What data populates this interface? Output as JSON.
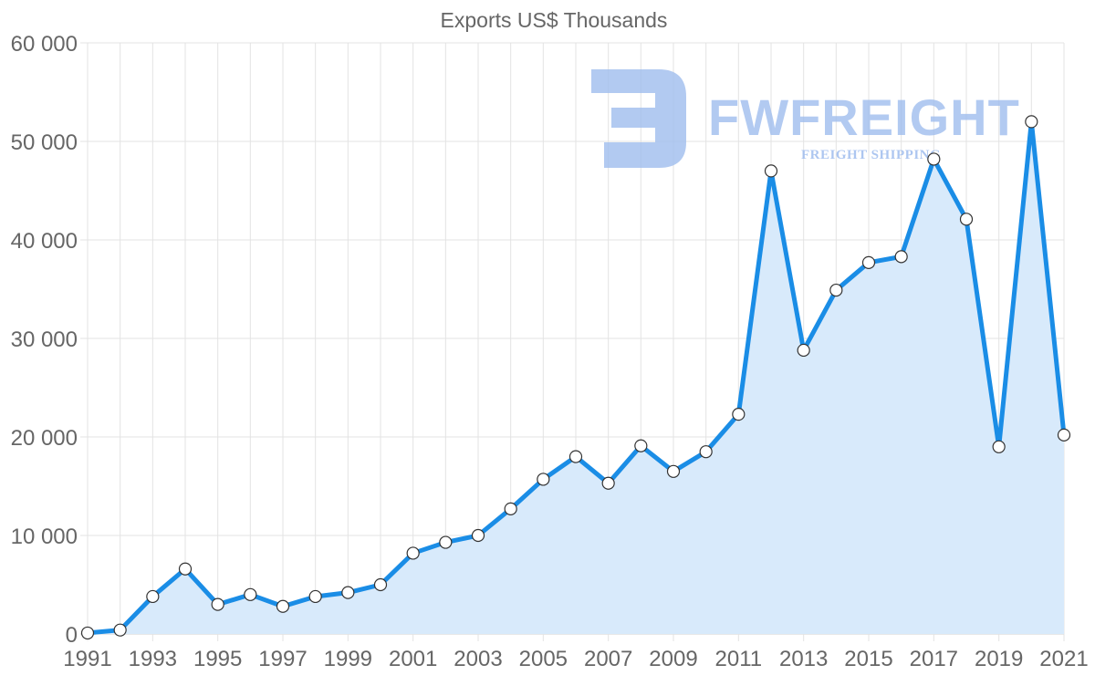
{
  "chart_data": {
    "type": "area",
    "title": "Exports US$ Thousands",
    "xlabel": "",
    "ylabel": "",
    "x": [
      1991,
      1992,
      1993,
      1994,
      1995,
      1996,
      1997,
      1998,
      1999,
      2000,
      2001,
      2002,
      2003,
      2004,
      2005,
      2006,
      2007,
      2008,
      2009,
      2010,
      2011,
      2012,
      2013,
      2014,
      2015,
      2016,
      2017,
      2018,
      2019,
      2020,
      2021
    ],
    "series": [
      {
        "name": "Exports",
        "values": [
          100,
          400,
          3800,
          6600,
          3000,
          4000,
          2800,
          3800,
          4200,
          5000,
          8200,
          9300,
          10000,
          12700,
          15700,
          18000,
          15300,
          19100,
          16500,
          18500,
          22300,
          47000,
          28800,
          34900,
          37700,
          38300,
          48200,
          42100,
          19000,
          52000,
          20200
        ]
      }
    ],
    "xlim": [
      1991,
      2021
    ],
    "ylim": [
      0,
      60000
    ],
    "x_ticks": [
      "1991",
      "1993",
      "1995",
      "1997",
      "1999",
      "2001",
      "2003",
      "2005",
      "2007",
      "2009",
      "2011",
      "2013",
      "2015",
      "2017",
      "2019",
      "2021"
    ],
    "y_ticks": [
      "0",
      "10 000",
      "20 000",
      "30 000",
      "40 000",
      "50 000",
      "60 000"
    ],
    "grid": true,
    "legend": "none",
    "colors": {
      "line": "#1a8de6",
      "fill": "#d8eafb",
      "text": "#666666",
      "grid": "#e3e3e3"
    }
  },
  "watermark": {
    "brand": "FWFREIGHT",
    "tagline": "FREIGHT SHIPPING",
    "icon": "fw-logo-icon",
    "color": "#9fbdee"
  }
}
